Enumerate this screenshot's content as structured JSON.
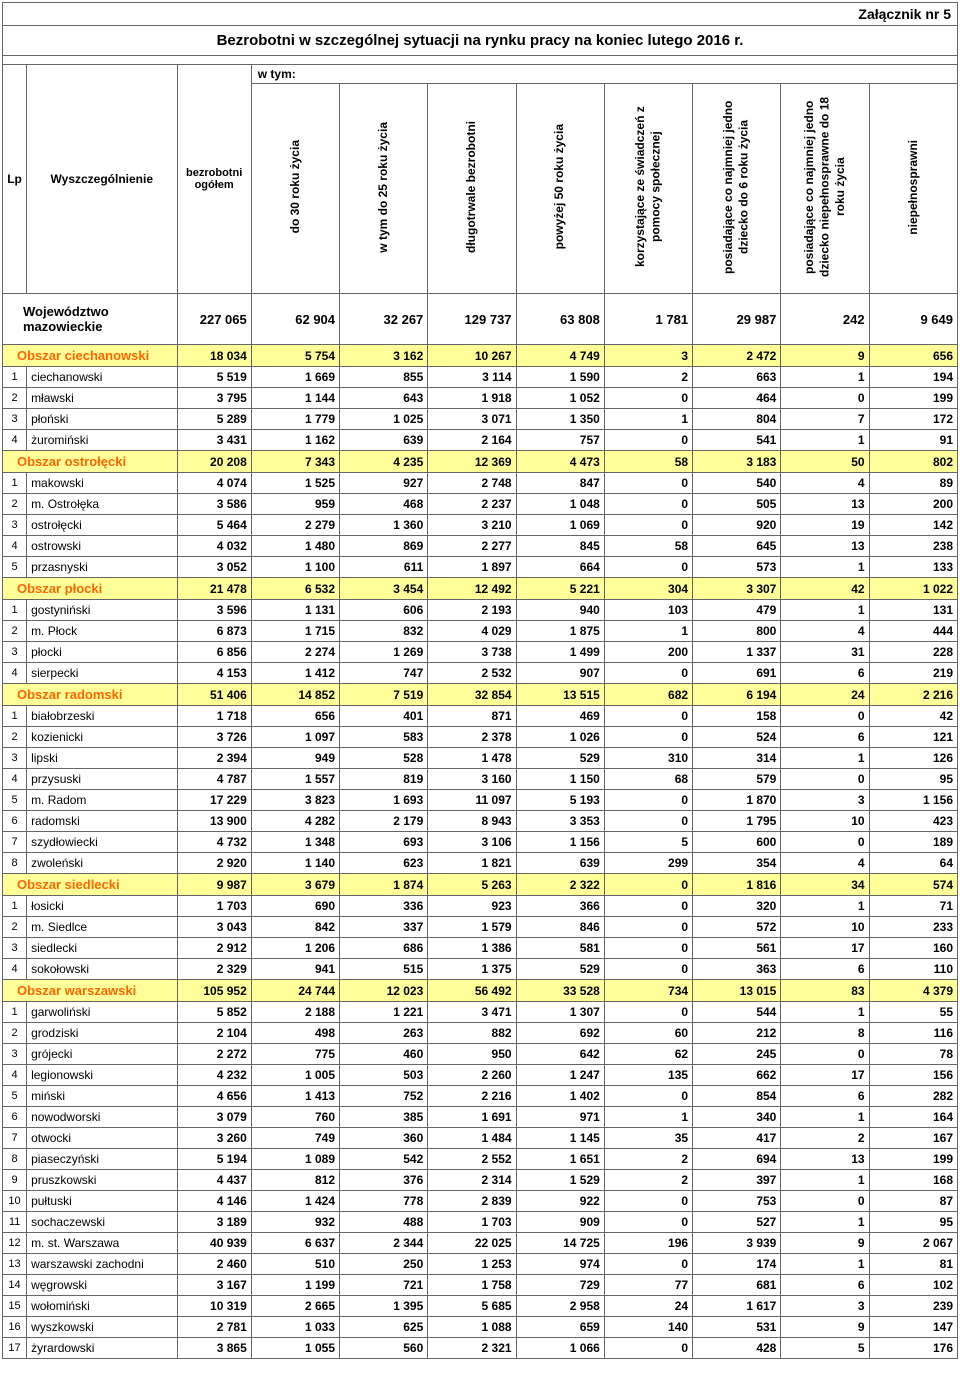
{
  "attachment_label": "Załącznik nr 5",
  "title": "Bezrobotni w szczególnej sytuacji na rynku pracy na koniec lutego 2016 r.",
  "header": {
    "lp": "Lp",
    "wyszcz": "Wyszczególnienie",
    "bezrob": "bezrobotni ogółem",
    "wtym": "w tym:",
    "cols": [
      "do 30 roku życia",
      "w tym do 25 roku życia",
      "długotrwale bezrobotni",
      "powyżej 50 roku życia",
      "korzystające ze świadczeń z pomocy społecznej",
      "posiadające co najmniej jedno dziecko do 6 roku życia",
      "posiadające co najmniej jedno dziecko niepełnosprawne do 18 roku życia",
      "niepełnosprawni"
    ]
  },
  "voivodeship": {
    "label": "Województwo mazowieckie",
    "vals": [
      "227 065",
      "62 904",
      "32 267",
      "129 737",
      "63 808",
      "1 781",
      "29 987",
      "242",
      "9 649"
    ]
  },
  "sections": [
    {
      "region": "Obszar ciechanowski",
      "vals": [
        "18 034",
        "5 754",
        "3 162",
        "10 267",
        "4 749",
        "3",
        "2 472",
        "9",
        "656"
      ],
      "rows": [
        {
          "lp": "1",
          "name": "ciechanowski",
          "vals": [
            "5 519",
            "1 669",
            "855",
            "3 114",
            "1 590",
            "2",
            "663",
            "1",
            "194"
          ]
        },
        {
          "lp": "2",
          "name": "mławski",
          "vals": [
            "3 795",
            "1 144",
            "643",
            "1 918",
            "1 052",
            "0",
            "464",
            "0",
            "199"
          ]
        },
        {
          "lp": "3",
          "name": "płoński",
          "vals": [
            "5 289",
            "1 779",
            "1 025",
            "3 071",
            "1 350",
            "1",
            "804",
            "7",
            "172"
          ]
        },
        {
          "lp": "4",
          "name": "żuromiński",
          "vals": [
            "3 431",
            "1 162",
            "639",
            "2 164",
            "757",
            "0",
            "541",
            "1",
            "91"
          ]
        }
      ]
    },
    {
      "region": "Obszar ostrołęcki",
      "vals": [
        "20 208",
        "7 343",
        "4 235",
        "12 369",
        "4 473",
        "58",
        "3 183",
        "50",
        "802"
      ],
      "rows": [
        {
          "lp": "1",
          "name": "makowski",
          "vals": [
            "4 074",
            "1 525",
            "927",
            "2 748",
            "847",
            "0",
            "540",
            "4",
            "89"
          ]
        },
        {
          "lp": "2",
          "name": "m. Ostrołęka",
          "vals": [
            "3 586",
            "959",
            "468",
            "2 237",
            "1 048",
            "0",
            "505",
            "13",
            "200"
          ]
        },
        {
          "lp": "3",
          "name": "ostrołęcki",
          "vals": [
            "5 464",
            "2 279",
            "1 360",
            "3 210",
            "1 069",
            "0",
            "920",
            "19",
            "142"
          ]
        },
        {
          "lp": "4",
          "name": "ostrowski",
          "vals": [
            "4 032",
            "1 480",
            "869",
            "2 277",
            "845",
            "58",
            "645",
            "13",
            "238"
          ]
        },
        {
          "lp": "5",
          "name": "przasnyski",
          "vals": [
            "3 052",
            "1 100",
            "611",
            "1 897",
            "664",
            "0",
            "573",
            "1",
            "133"
          ]
        }
      ]
    },
    {
      "region": "Obszar płocki",
      "vals": [
        "21 478",
        "6 532",
        "3 454",
        "12 492",
        "5 221",
        "304",
        "3 307",
        "42",
        "1 022"
      ],
      "rows": [
        {
          "lp": "1",
          "name": "gostyniński",
          "vals": [
            "3 596",
            "1 131",
            "606",
            "2 193",
            "940",
            "103",
            "479",
            "1",
            "131"
          ]
        },
        {
          "lp": "2",
          "name": "m. Płock",
          "vals": [
            "6 873",
            "1 715",
            "832",
            "4 029",
            "1 875",
            "1",
            "800",
            "4",
            "444"
          ]
        },
        {
          "lp": "3",
          "name": "płocki",
          "vals": [
            "6 856",
            "2 274",
            "1 269",
            "3 738",
            "1 499",
            "200",
            "1 337",
            "31",
            "228"
          ]
        },
        {
          "lp": "4",
          "name": "sierpecki",
          "vals": [
            "4 153",
            "1 412",
            "747",
            "2 532",
            "907",
            "0",
            "691",
            "6",
            "219"
          ]
        }
      ]
    },
    {
      "region": "Obszar radomski",
      "vals": [
        "51 406",
        "14 852",
        "7 519",
        "32 854",
        "13 515",
        "682",
        "6 194",
        "24",
        "2 216"
      ],
      "rows": [
        {
          "lp": "1",
          "name": "białobrzeski",
          "vals": [
            "1 718",
            "656",
            "401",
            "871",
            "469",
            "0",
            "158",
            "0",
            "42"
          ]
        },
        {
          "lp": "2",
          "name": "kozienicki",
          "vals": [
            "3 726",
            "1 097",
            "583",
            "2 378",
            "1 026",
            "0",
            "524",
            "6",
            "121"
          ]
        },
        {
          "lp": "3",
          "name": "lipski",
          "vals": [
            "2 394",
            "949",
            "528",
            "1 478",
            "529",
            "310",
            "314",
            "1",
            "126"
          ]
        },
        {
          "lp": "4",
          "name": "przysuski",
          "vals": [
            "4 787",
            "1 557",
            "819",
            "3 160",
            "1 150",
            "68",
            "579",
            "0",
            "95"
          ]
        },
        {
          "lp": "5",
          "name": "m. Radom",
          "vals": [
            "17 229",
            "3 823",
            "1 693",
            "11 097",
            "5 193",
            "0",
            "1 870",
            "3",
            "1 156"
          ]
        },
        {
          "lp": "6",
          "name": "radomski",
          "vals": [
            "13 900",
            "4 282",
            "2 179",
            "8 943",
            "3 353",
            "0",
            "1 795",
            "10",
            "423"
          ]
        },
        {
          "lp": "7",
          "name": "szydłowiecki",
          "vals": [
            "4 732",
            "1 348",
            "693",
            "3 106",
            "1 156",
            "5",
            "600",
            "0",
            "189"
          ]
        },
        {
          "lp": "8",
          "name": "zwoleński",
          "vals": [
            "2 920",
            "1 140",
            "623",
            "1 821",
            "639",
            "299",
            "354",
            "4",
            "64"
          ]
        }
      ]
    },
    {
      "region": "Obszar siedlecki",
      "vals": [
        "9 987",
        "3 679",
        "1 874",
        "5 263",
        "2 322",
        "0",
        "1 816",
        "34",
        "574"
      ],
      "rows": [
        {
          "lp": "1",
          "name": "łosicki",
          "vals": [
            "1 703",
            "690",
            "336",
            "923",
            "366",
            "0",
            "320",
            "1",
            "71"
          ]
        },
        {
          "lp": "2",
          "name": "m. Siedlce",
          "vals": [
            "3 043",
            "842",
            "337",
            "1 579",
            "846",
            "0",
            "572",
            "10",
            "233"
          ]
        },
        {
          "lp": "3",
          "name": "siedlecki",
          "vals": [
            "2 912",
            "1 206",
            "686",
            "1 386",
            "581",
            "0",
            "561",
            "17",
            "160"
          ]
        },
        {
          "lp": "4",
          "name": "sokołowski",
          "vals": [
            "2 329",
            "941",
            "515",
            "1 375",
            "529",
            "0",
            "363",
            "6",
            "110"
          ]
        }
      ]
    },
    {
      "region": "Obszar warszawski",
      "vals": [
        "105 952",
        "24 744",
        "12 023",
        "56 492",
        "33 528",
        "734",
        "13 015",
        "83",
        "4 379"
      ],
      "rows": [
        {
          "lp": "1",
          "name": "garwoliński",
          "vals": [
            "5 852",
            "2 188",
            "1 221",
            "3 471",
            "1 307",
            "0",
            "544",
            "1",
            "55"
          ]
        },
        {
          "lp": "2",
          "name": "grodziski",
          "vals": [
            "2 104",
            "498",
            "263",
            "882",
            "692",
            "60",
            "212",
            "8",
            "116"
          ]
        },
        {
          "lp": "3",
          "name": "grójecki",
          "vals": [
            "2 272",
            "775",
            "460",
            "950",
            "642",
            "62",
            "245",
            "0",
            "78"
          ]
        },
        {
          "lp": "4",
          "name": "legionowski",
          "vals": [
            "4 232",
            "1 005",
            "503",
            "2 260",
            "1 247",
            "135",
            "662",
            "17",
            "156"
          ]
        },
        {
          "lp": "5",
          "name": "miński",
          "vals": [
            "4 656",
            "1 413",
            "752",
            "2 216",
            "1 402",
            "0",
            "854",
            "6",
            "282"
          ]
        },
        {
          "lp": "6",
          "name": "nowodworski",
          "vals": [
            "3 079",
            "760",
            "385",
            "1 691",
            "971",
            "1",
            "340",
            "1",
            "164"
          ]
        },
        {
          "lp": "7",
          "name": "otwocki",
          "vals": [
            "3 260",
            "749",
            "360",
            "1 484",
            "1 145",
            "35",
            "417",
            "2",
            "167"
          ]
        },
        {
          "lp": "8",
          "name": "piaseczyński",
          "vals": [
            "5 194",
            "1 089",
            "542",
            "2 552",
            "1 651",
            "2",
            "694",
            "13",
            "199"
          ]
        },
        {
          "lp": "9",
          "name": "pruszkowski",
          "vals": [
            "4 437",
            "812",
            "376",
            "2 314",
            "1 529",
            "2",
            "397",
            "1",
            "168"
          ]
        },
        {
          "lp": "10",
          "name": "pułtuski",
          "vals": [
            "4 146",
            "1 424",
            "778",
            "2 839",
            "922",
            "0",
            "753",
            "0",
            "87"
          ]
        },
        {
          "lp": "11",
          "name": "sochaczewski",
          "vals": [
            "3 189",
            "932",
            "488",
            "1 703",
            "909",
            "0",
            "527",
            "1",
            "95"
          ]
        },
        {
          "lp": "12",
          "name": "m. st. Warszawa",
          "vals": [
            "40 939",
            "6 637",
            "2 344",
            "22 025",
            "14 725",
            "196",
            "3 939",
            "9",
            "2 067"
          ]
        },
        {
          "lp": "13",
          "name": "warszawski zachodni",
          "vals": [
            "2 460",
            "510",
            "250",
            "1 253",
            "974",
            "0",
            "174",
            "1",
            "81"
          ]
        },
        {
          "lp": "14",
          "name": "węgrowski",
          "vals": [
            "3 167",
            "1 199",
            "721",
            "1 758",
            "729",
            "77",
            "681",
            "6",
            "102"
          ]
        },
        {
          "lp": "15",
          "name": "wołomiński",
          "vals": [
            "10 319",
            "2 665",
            "1 395",
            "5 685",
            "2 958",
            "24",
            "1 617",
            "3",
            "239"
          ]
        },
        {
          "lp": "16",
          "name": "wyszkowski",
          "vals": [
            "2 781",
            "1 033",
            "625",
            "1 088",
            "659",
            "140",
            "531",
            "9",
            "147"
          ]
        },
        {
          "lp": "17",
          "name": "żyrardowski",
          "vals": [
            "3 865",
            "1 055",
            "560",
            "2 321",
            "1 066",
            "0",
            "428",
            "5",
            "176"
          ]
        }
      ]
    }
  ],
  "colors": {
    "region_bg": "#ffff99",
    "region_text": "#ff6600",
    "border": "#666666"
  }
}
